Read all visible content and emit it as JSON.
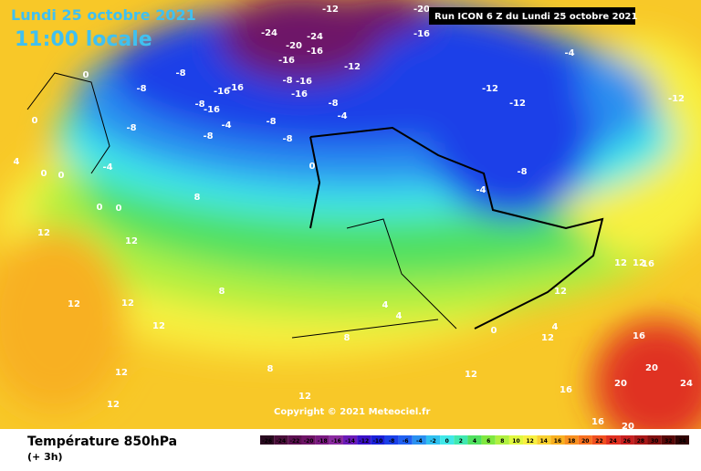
{
  "header": {
    "date": "Lundi 25 octobre 2021",
    "time": "11:00 locale",
    "run": "Run ICON 6 Z du Lundi 25 octobre 2021"
  },
  "copyright": "Copyright © 2021 Meteociel.fr",
  "footer": {
    "title": "Température 850hPa",
    "step": "(+ 3h)"
  },
  "legend": {
    "ticks": [
      -26,
      -24,
      -22,
      -20,
      -18,
      -16,
      -14,
      -12,
      -10,
      -8,
      -6,
      -4,
      -2,
      0,
      2,
      4,
      6,
      8,
      10,
      12,
      14,
      16,
      18,
      20,
      22,
      24,
      26,
      28,
      30,
      32,
      34
    ],
    "colors": [
      "#2a0a20",
      "#4a0f3a",
      "#5c1050",
      "#6e1467",
      "#7a1a80",
      "#8a2aa0",
      "#6a1ab8",
      "#3a10c8",
      "#1a20d8",
      "#1a40e8",
      "#2060f0",
      "#2a90f0",
      "#30c0f0",
      "#40e8e8",
      "#40e8b0",
      "#50e060",
      "#80e840",
      "#b0f040",
      "#e0f840",
      "#f8f040",
      "#f8d030",
      "#f8b020",
      "#f89020",
      "#f87020",
      "#f05020",
      "#e03020",
      "#c82020",
      "#a81818",
      "#801010",
      "#580808",
      "#300404"
    ]
  },
  "map_labels": [
    -24,
    -20,
    -24,
    -16,
    -12,
    -16,
    -20,
    -16,
    -12,
    -8,
    -8,
    -16,
    -16,
    -8,
    -16,
    -16,
    -12,
    -12,
    -8,
    -8,
    -16,
    -4,
    -4,
    -8,
    -8,
    -8,
    -8,
    -4,
    -12,
    -8,
    -4,
    0,
    0,
    0,
    4,
    0,
    0,
    0,
    0,
    -4,
    8,
    12,
    12,
    12,
    12,
    12,
    12,
    12,
    8,
    8,
    12,
    12,
    16,
    16,
    20,
    20,
    20,
    24,
    16,
    12,
    12,
    12,
    16,
    4,
    4,
    8,
    0,
    12,
    4
  ]
}
